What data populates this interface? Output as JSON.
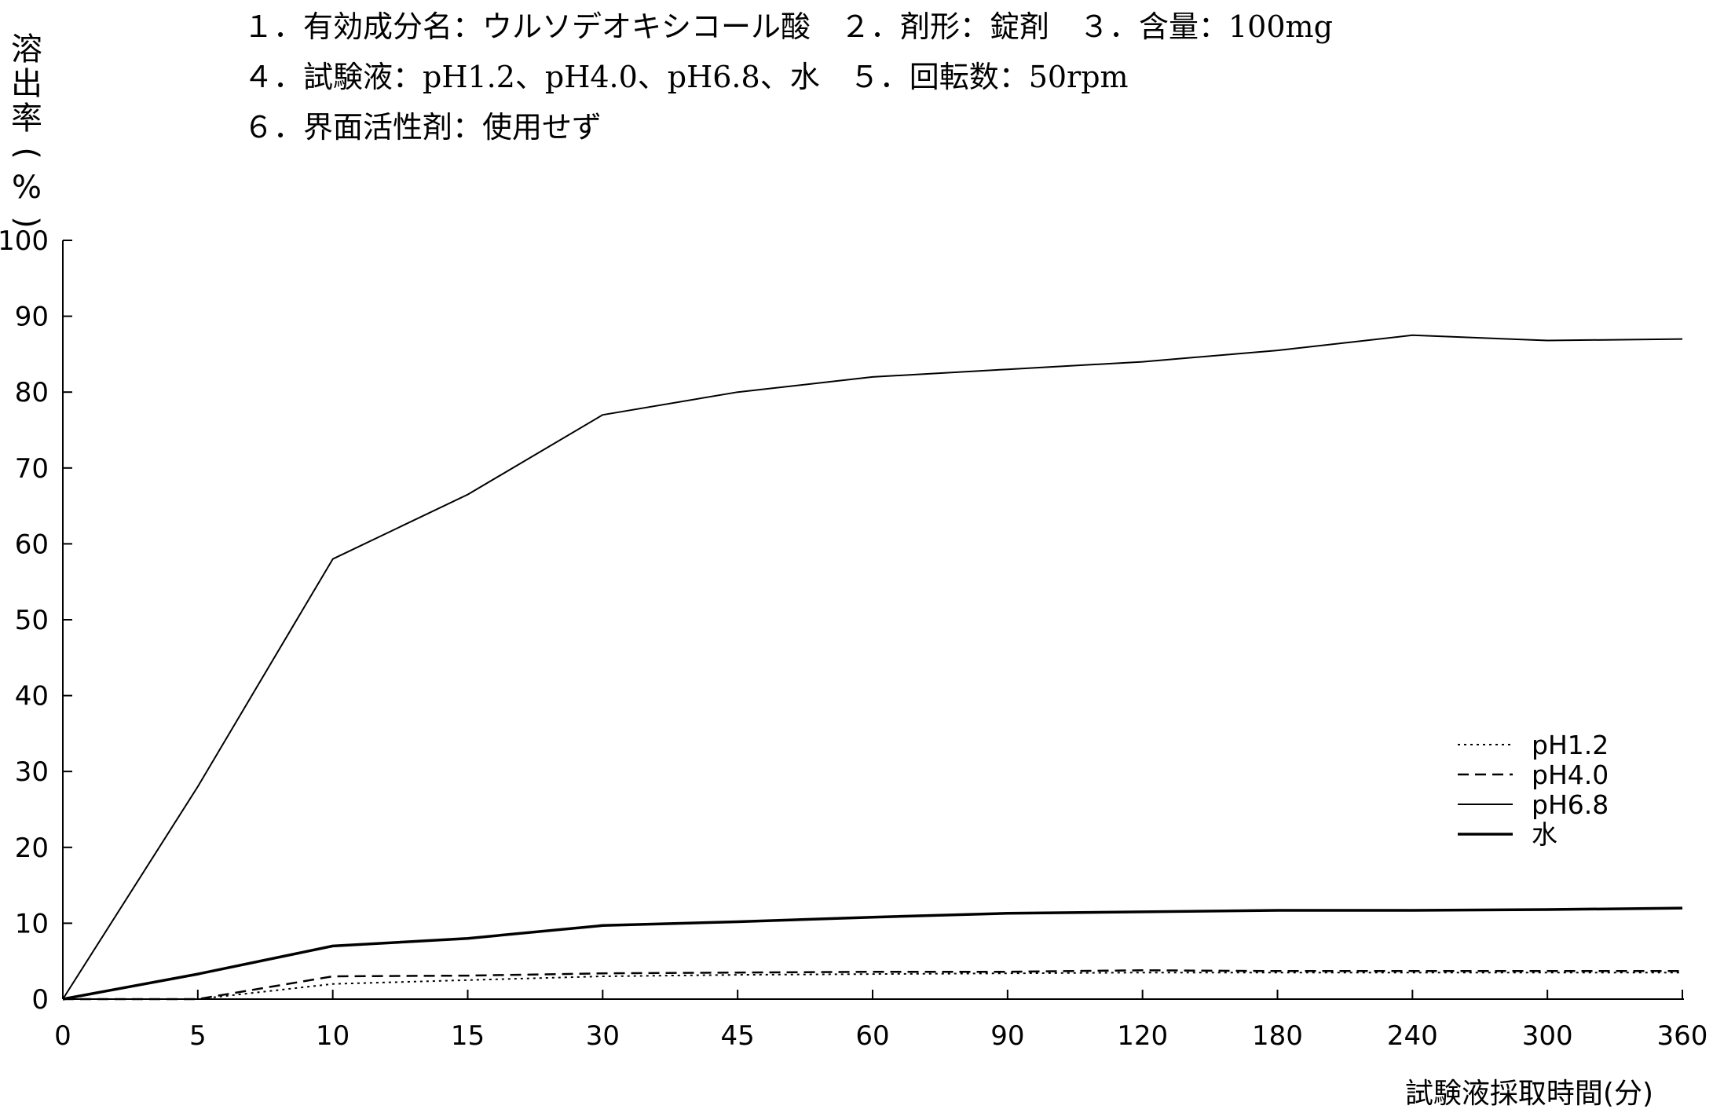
{
  "header": {
    "line1": "１．有効成分名：ウルソデオキシコール酸　２．剤形：錠剤　３．含量：100mg",
    "line2": "４．試験液：pH1.2、pH4.0、pH6.8、水　５．回転数：50rpm",
    "line3": "６．界面活性剤：使用せず"
  },
  "chart_data": {
    "type": "line",
    "ylabel": "溶出率(%)",
    "xlabel": "試験液採取時間(分)",
    "categories": [
      "0",
      "5",
      "10",
      "15",
      "30",
      "45",
      "60",
      "90",
      "120",
      "180",
      "240",
      "300",
      "360"
    ],
    "yticks": [
      "0",
      "10",
      "20",
      "30",
      "40",
      "50",
      "60",
      "70",
      "80",
      "90",
      "100"
    ],
    "ylim": [
      0,
      100
    ],
    "grid": false,
    "legend_position": "right",
    "series": [
      {
        "name": "pH1.2",
        "style": "dotted",
        "values": [
          0,
          0,
          2,
          2.5,
          3,
          3.2,
          3.3,
          3.4,
          3.5,
          3.5,
          3.5,
          3.5,
          3.5
        ]
      },
      {
        "name": "pH4.0",
        "style": "dashed",
        "values": [
          0,
          0,
          3,
          3.1,
          3.4,
          3.5,
          3.6,
          3.6,
          3.8,
          3.7,
          3.7,
          3.7,
          3.7
        ]
      },
      {
        "name": "pH6.8",
        "style": "solid-thin",
        "values": [
          0,
          28,
          58,
          66.5,
          77,
          80,
          82,
          83,
          84,
          85.5,
          87.5,
          86.8,
          87
        ]
      },
      {
        "name": "水",
        "style": "solid-thick",
        "values": [
          0,
          3.3,
          7,
          8,
          9.7,
          10.2,
          10.8,
          11.3,
          11.5,
          11.7,
          11.7,
          11.8,
          12
        ]
      }
    ]
  },
  "colors": {
    "line": "#000000",
    "background": "#ffffff"
  }
}
